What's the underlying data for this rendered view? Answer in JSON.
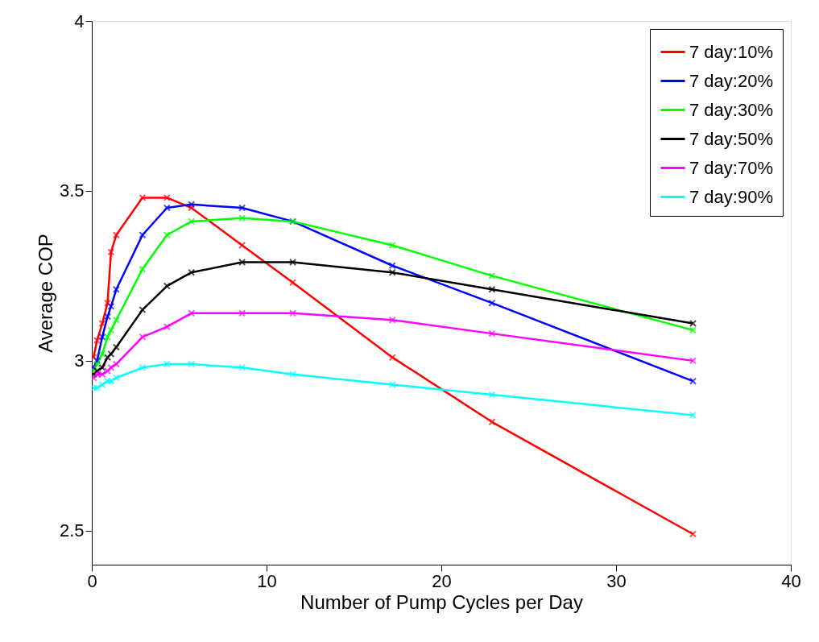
{
  "chart_data": {
    "type": "line",
    "xlabel": "Number of Pump Cycles per Day",
    "ylabel": "Average COP",
    "x": [
      0.1,
      0.3,
      0.6,
      0.9,
      1.1,
      1.4,
      2.9,
      4.3,
      5.7,
      8.6,
      11.5,
      17.2,
      22.9,
      34.4
    ],
    "series": [
      {
        "name": "7 day:10%",
        "color": "#ff0000",
        "values": [
          3.01,
          3.06,
          3.11,
          3.17,
          3.32,
          3.37,
          3.48,
          3.48,
          3.45,
          3.34,
          3.23,
          3.01,
          2.82,
          2.49
        ]
      },
      {
        "name": "7 day:20%",
        "color": "#0000ff",
        "values": [
          2.98,
          3.0,
          3.07,
          3.13,
          3.16,
          3.21,
          3.37,
          3.45,
          3.46,
          3.45,
          3.41,
          3.28,
          3.17,
          2.94
        ]
      },
      {
        "name": "7 day:30%",
        "color": "#00ff00",
        "values": [
          2.97,
          2.99,
          3.02,
          3.07,
          3.09,
          3.12,
          3.27,
          3.37,
          3.41,
          3.42,
          3.41,
          3.34,
          3.25,
          3.09
        ]
      },
      {
        "name": "7 day:50%",
        "color": "#000000",
        "values": [
          2.96,
          2.97,
          2.98,
          3.01,
          3.02,
          3.04,
          3.15,
          3.22,
          3.26,
          3.29,
          3.29,
          3.26,
          3.21,
          3.11
        ]
      },
      {
        "name": "7 day:70%",
        "color": "#ff00ff",
        "values": [
          2.95,
          2.96,
          2.96,
          2.97,
          2.98,
          2.99,
          3.07,
          3.1,
          3.14,
          3.14,
          3.14,
          3.12,
          3.08,
          3.0
        ]
      },
      {
        "name": "7 day:90%",
        "color": "#00ffff",
        "values": [
          2.92,
          2.92,
          2.93,
          2.94,
          2.94,
          2.95,
          2.98,
          2.99,
          2.99,
          2.98,
          2.96,
          2.93,
          2.9,
          2.84
        ]
      }
    ],
    "xlim": [
      0,
      40
    ],
    "xticks": [
      0,
      10,
      20,
      30,
      40
    ],
    "ylim": [
      2.4,
      4
    ],
    "yticks": [
      2.5,
      3,
      3.5,
      4
    ],
    "grid": false,
    "legend": "top right",
    "marker": "cross",
    "line_style": "solid"
  }
}
